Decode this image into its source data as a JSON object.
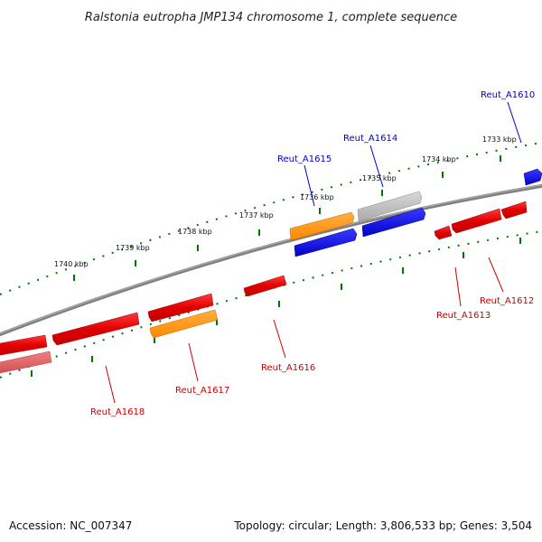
{
  "title": "Ralstonia eutropha JMP134 chromosome 1, complete sequence",
  "scale_labels": [
    "1740 kbp",
    "1739 kbp",
    "1738 kbp",
    "1737 kbp",
    "1736 kbp",
    "1735 kbp",
    "1734 kbp",
    "1733 kbp"
  ],
  "genes": [
    {
      "name": "Reut_A1610",
      "strand": "+",
      "color": "#0000cc"
    },
    {
      "name": "Reut_A1614",
      "strand": "+",
      "color": "#0000cc"
    },
    {
      "name": "Reut_A1615",
      "strand": "+",
      "color": "#0000cc"
    },
    {
      "name": "Reut_A1612",
      "strand": "-",
      "color": "#cc0000"
    },
    {
      "name": "Reut_A1613",
      "strand": "-",
      "color": "#cc0000"
    },
    {
      "name": "Reut_A1616",
      "strand": "-",
      "color": "#cc0000"
    },
    {
      "name": "Reut_A1617",
      "strand": "-",
      "color": "#cc0000"
    },
    {
      "name": "Reut_A1618",
      "strand": "-",
      "color": "#cc0000"
    }
  ],
  "footer": {
    "accession": "Accession: NC_007347",
    "topology": "Topology: circular; Length: 3,806,533 bp; Genes: 3,504"
  },
  "colors": {
    "backbone": "#808080",
    "tick": "#007700",
    "plus_strand": "#0000ee",
    "minus_strand": "#ee0000",
    "rna": "#ff8800",
    "other": "#aaaaaa"
  }
}
